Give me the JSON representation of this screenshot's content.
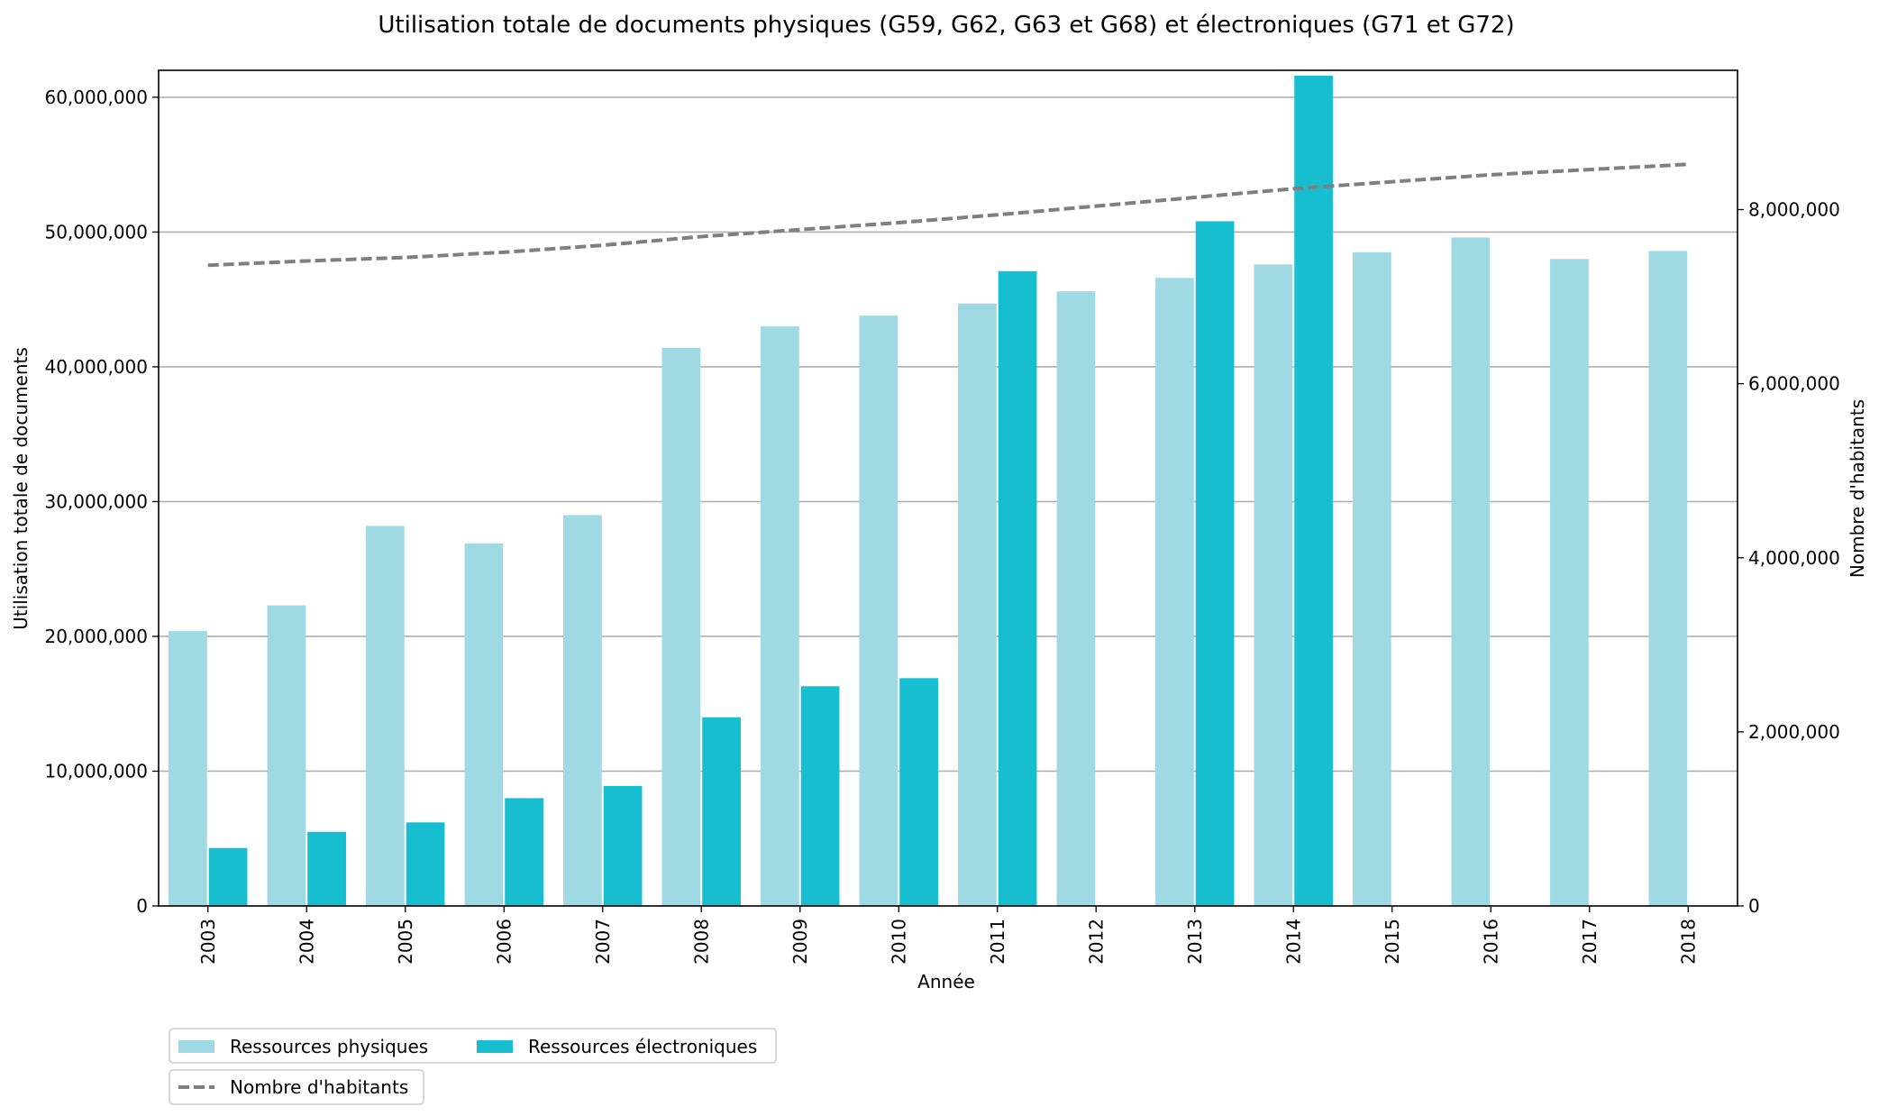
{
  "chart_data": {
    "type": "bar",
    "title": "Utilisation totale de documents physiques (G59, G62, G63 et G68) et électroniques (G71 et G72)",
    "xlabel": "Année",
    "ylabel": "Utilisation totale de documents",
    "y2label": "Nombre d'habitants",
    "categories": [
      "2003",
      "2004",
      "2005",
      "2006",
      "2007",
      "2008",
      "2009",
      "2010",
      "2011",
      "2012",
      "2013",
      "2014",
      "2015",
      "2016",
      "2017",
      "2018"
    ],
    "series": [
      {
        "name": "Ressources physiques",
        "type": "bar",
        "axis": "left",
        "color": "#9fd9e4",
        "values": [
          20400000,
          22300000,
          28200000,
          26900000,
          29000000,
          41400000,
          43000000,
          43800000,
          44700000,
          45600000,
          46600000,
          47600000,
          48500000,
          49600000,
          48000000,
          48600000
        ]
      },
      {
        "name": "Ressources électroniques",
        "type": "bar",
        "axis": "left",
        "color": "#17becf",
        "values": [
          4300000,
          5500000,
          6200000,
          8000000,
          8900000,
          14000000,
          16300000,
          16900000,
          47100000,
          null,
          50800000,
          61600000,
          null,
          null,
          null,
          null
        ]
      },
      {
        "name": "Nombre d'habitants",
        "type": "line",
        "axis": "right",
        "color": "#7f7f7f",
        "style": "dashed",
        "values": [
          7360000,
          7410000,
          7450000,
          7510000,
          7590000,
          7690000,
          7770000,
          7850000,
          7940000,
          8040000,
          8140000,
          8240000,
          8320000,
          8400000,
          8460000,
          8520000
        ]
      }
    ],
    "ylim": [
      0,
      62000000
    ],
    "y2lim": [
      0,
      9600000
    ],
    "yticks": [
      "0",
      "10,000,000",
      "20,000,000",
      "30,000,000",
      "40,000,000",
      "50,000,000",
      "60,000,000"
    ],
    "ytick_values": [
      0,
      10000000,
      20000000,
      30000000,
      40000000,
      50000000,
      60000000
    ],
    "y2ticks": [
      "0",
      "2,000,000",
      "4,000,000",
      "6,000,000",
      "8,000,000"
    ],
    "y2tick_values": [
      0,
      2000000,
      4000000,
      6000000,
      8000000
    ],
    "grid": "horizontal",
    "legend_placement": "bottom-left"
  }
}
